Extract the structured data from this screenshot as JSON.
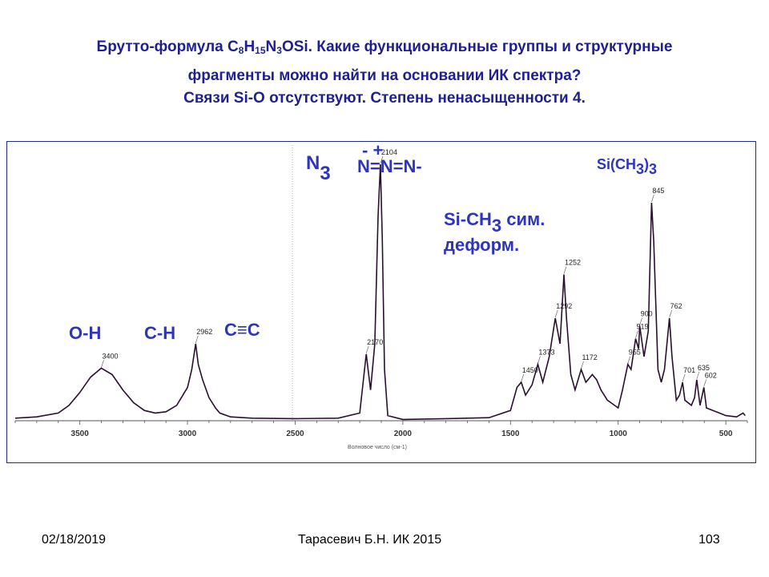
{
  "slide": {
    "title_prefix": "Брутто-формула C",
    "title_sub1": "8",
    "title_mid1": "H",
    "title_sub2": "15",
    "title_mid2": "N",
    "title_sub3": "3",
    "title_suffix": "OSi. Какие функциональные группы и структурные",
    "title_line2": "фрагменты можно найти на основании ИК спектра?",
    "title_line3": "Связи Si-O отсутствуют.  Степень ненасыщенности 4."
  },
  "footer": {
    "date": "02/18/2019",
    "author": "Тарасевич Б.Н.  ИК 2015",
    "page": "103"
  },
  "chart_data": {
    "type": "line",
    "xlabel": "Волновое число (см-1)",
    "xlim": [
      3800,
      400
    ],
    "x_ticks": [
      3500,
      3000,
      2500,
      2000,
      1500,
      1000,
      500
    ],
    "series": [
      {
        "points": [
          [
            3800,
            0.01
          ],
          [
            3700,
            0.015
          ],
          [
            3600,
            0.03
          ],
          [
            3550,
            0.06
          ],
          [
            3500,
            0.11
          ],
          [
            3450,
            0.17
          ],
          [
            3400,
            0.205
          ],
          [
            3350,
            0.18
          ],
          [
            3300,
            0.12
          ],
          [
            3250,
            0.07
          ],
          [
            3200,
            0.04
          ],
          [
            3150,
            0.03
          ],
          [
            3100,
            0.035
          ],
          [
            3050,
            0.06
          ],
          [
            3000,
            0.13
          ],
          [
            2980,
            0.2
          ],
          [
            2962,
            0.3
          ],
          [
            2950,
            0.22
          ],
          [
            2930,
            0.16
          ],
          [
            2900,
            0.09
          ],
          [
            2870,
            0.05
          ],
          [
            2850,
            0.03
          ],
          [
            2800,
            0.015
          ],
          [
            2700,
            0.01
          ],
          [
            2500,
            0.008
          ],
          [
            2300,
            0.01
          ],
          [
            2200,
            0.03
          ],
          [
            2170,
            0.26
          ],
          [
            2150,
            0.12
          ],
          [
            2130,
            0.3
          ],
          [
            2115,
            0.8
          ],
          [
            2104,
            1.0
          ],
          [
            2095,
            0.7
          ],
          [
            2085,
            0.2
          ],
          [
            2070,
            0.02
          ],
          [
            2000,
            0.005
          ],
          [
            1800,
            0.008
          ],
          [
            1600,
            0.012
          ],
          [
            1500,
            0.04
          ],
          [
            1470,
            0.13
          ],
          [
            1450,
            0.15
          ],
          [
            1430,
            0.1
          ],
          [
            1400,
            0.14
          ],
          [
            1373,
            0.22
          ],
          [
            1350,
            0.15
          ],
          [
            1320,
            0.25
          ],
          [
            1292,
            0.4
          ],
          [
            1270,
            0.3
          ],
          [
            1252,
            0.57
          ],
          [
            1240,
            0.4
          ],
          [
            1220,
            0.18
          ],
          [
            1200,
            0.12
          ],
          [
            1172,
            0.2
          ],
          [
            1150,
            0.15
          ],
          [
            1120,
            0.18
          ],
          [
            1100,
            0.16
          ],
          [
            1080,
            0.12
          ],
          [
            1050,
            0.08
          ],
          [
            1000,
            0.05
          ],
          [
            980,
            0.12
          ],
          [
            955,
            0.22
          ],
          [
            940,
            0.2
          ],
          [
            919,
            0.32
          ],
          [
            905,
            0.28
          ],
          [
            900,
            0.37
          ],
          [
            880,
            0.25
          ],
          [
            860,
            0.35
          ],
          [
            845,
            0.85
          ],
          [
            835,
            0.7
          ],
          [
            815,
            0.2
          ],
          [
            800,
            0.15
          ],
          [
            785,
            0.2
          ],
          [
            762,
            0.4
          ],
          [
            750,
            0.25
          ],
          [
            730,
            0.08
          ],
          [
            715,
            0.1
          ],
          [
            701,
            0.15
          ],
          [
            690,
            0.08
          ],
          [
            660,
            0.06
          ],
          [
            645,
            0.09
          ],
          [
            635,
            0.16
          ],
          [
            620,
            0.06
          ],
          [
            602,
            0.13
          ],
          [
            590,
            0.05
          ],
          [
            560,
            0.04
          ],
          [
            530,
            0.03
          ],
          [
            500,
            0.02
          ],
          [
            450,
            0.015
          ],
          [
            420,
            0.03
          ],
          [
            410,
            0.02
          ]
        ]
      }
    ],
    "peak_labels": [
      "3400",
      "2962",
      "2170",
      "2104",
      "1450",
      "1373",
      "1292",
      "1252",
      "1172",
      "955",
      "919",
      "900",
      "845",
      "762",
      "701",
      "635",
      "602"
    ],
    "peak_positions": [
      3400,
      2962,
      2170,
      2104,
      1450,
      1373,
      1292,
      1252,
      1172,
      955,
      919,
      900,
      845,
      762,
      701,
      635,
      602
    ],
    "annotations": {
      "oh": "O-H",
      "ch": "C-H",
      "cc": "C≡C",
      "n3_main": "N",
      "n3_sub": "3",
      "azide_charges": "-  +",
      "azide": "N=N=N-",
      "sich3_line1_main": "Si-CH",
      "sich3_line1_sub": "3",
      "sich3_line1_rest": " сим.",
      "sich3_line2": "деформ.",
      "sime3_main": "Si(CH",
      "sime3_sub1": "3",
      "sime3_mid": ")",
      "sime3_sub2": "3"
    },
    "colors": {
      "spectrum": "#2a0f2f",
      "annotation": "#2e35b8",
      "frame": "#1f2a8a",
      "title": "#1f1f8f"
    }
  }
}
